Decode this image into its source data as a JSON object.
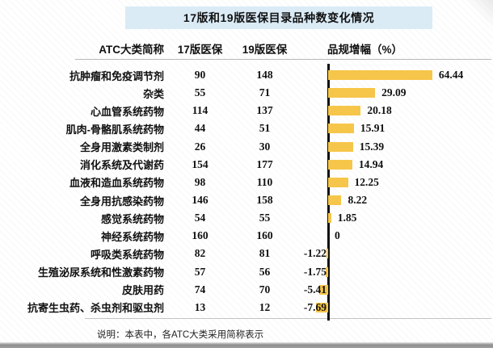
{
  "title": "17版和19版医保目录品种数变化情况",
  "header": {
    "category": "ATC大类简称",
    "v17": "17版医保",
    "v19": "19版医保",
    "growth": "品规增幅（%）"
  },
  "note": "说明：本表中，各ATC大类采用简称表示",
  "colors": {
    "bar": "#F6C64A",
    "title_bg": "#DAEBF6",
    "axis": "#111111"
  },
  "chart_data": {
    "type": "bar",
    "orientation": "horizontal",
    "title": "17版和19版医保目录品种数变化情况",
    "categories": [
      "抗肿瘤和免疫调节剂",
      "杂类",
      "心血管系统药物",
      "肌肉-骨骼肌系统药物",
      "全身用激素类制剂",
      "消化系统及代谢药",
      "血液和造血系统药物",
      "全身用抗感染药物",
      "感觉系统药物",
      "神经系统药物",
      "呼吸类系统药物",
      "生殖泌尿系统和性激素药物",
      "皮肤用药",
      "抗寄生虫药、杀虫剂和驱虫剂"
    ],
    "series": [
      {
        "name": "17版医保",
        "values": [
          90,
          55,
          114,
          44,
          26,
          154,
          98,
          146,
          54,
          160,
          82,
          57,
          74,
          13
        ]
      },
      {
        "name": "19版医保",
        "values": [
          148,
          71,
          137,
          51,
          30,
          177,
          110,
          158,
          55,
          160,
          81,
          56,
          70,
          12
        ]
      },
      {
        "name": "品规增幅（%）",
        "values": [
          64.44,
          29.09,
          20.18,
          15.91,
          15.39,
          14.94,
          12.25,
          8.22,
          1.85,
          0,
          -1.22,
          -1.75,
          -5.41,
          -7.69
        ]
      }
    ],
    "bar_series": "品规增幅（%）",
    "xlim": [
      -10,
      70
    ],
    "grid": false,
    "legend": false,
    "axis_zero_line": true
  },
  "rows": [
    {
      "category": "抗肿瘤和免疫调节剂",
      "v17": "90",
      "v19": "148",
      "growth": 64.44,
      "growth_label": "64.44"
    },
    {
      "category": "杂类",
      "v17": "55",
      "v19": "71",
      "growth": 29.09,
      "growth_label": "29.09"
    },
    {
      "category": "心血管系统药物",
      "v17": "114",
      "v19": "137",
      "growth": 20.18,
      "growth_label": "20.18"
    },
    {
      "category": "肌肉-骨骼肌系统药物",
      "v17": "44",
      "v19": "51",
      "growth": 15.91,
      "growth_label": "15.91"
    },
    {
      "category": "全身用激素类制剂",
      "v17": "26",
      "v19": "30",
      "growth": 15.39,
      "growth_label": "15.39"
    },
    {
      "category": "消化系统及代谢药",
      "v17": "154",
      "v19": "177",
      "growth": 14.94,
      "growth_label": "14.94"
    },
    {
      "category": "血液和造血系统药物",
      "v17": "98",
      "v19": "110",
      "growth": 12.25,
      "growth_label": "12.25"
    },
    {
      "category": "全身用抗感染药物",
      "v17": "146",
      "v19": "158",
      "growth": 8.22,
      "growth_label": "8.22"
    },
    {
      "category": "感觉系统药物",
      "v17": "54",
      "v19": "55",
      "growth": 1.85,
      "growth_label": "1.85"
    },
    {
      "category": "神经系统药物",
      "v17": "160",
      "v19": "160",
      "growth": 0,
      "growth_label": "0"
    },
    {
      "category": "呼吸类系统药物",
      "v17": "82",
      "v19": "81",
      "growth": -1.22,
      "growth_label": "-1.22"
    },
    {
      "category": "生殖泌尿系统和性激素药物",
      "v17": "57",
      "v19": "56",
      "growth": -1.75,
      "growth_label": "-1.75"
    },
    {
      "category": "皮肤用药",
      "v17": "74",
      "v19": "70",
      "growth": -5.41,
      "growth_label": "-5.41"
    },
    {
      "category": "抗寄生虫药、杀虫剂和驱虫剂",
      "v17": "13",
      "v19": "12",
      "growth": -7.69,
      "growth_label": "-7.69"
    }
  ]
}
